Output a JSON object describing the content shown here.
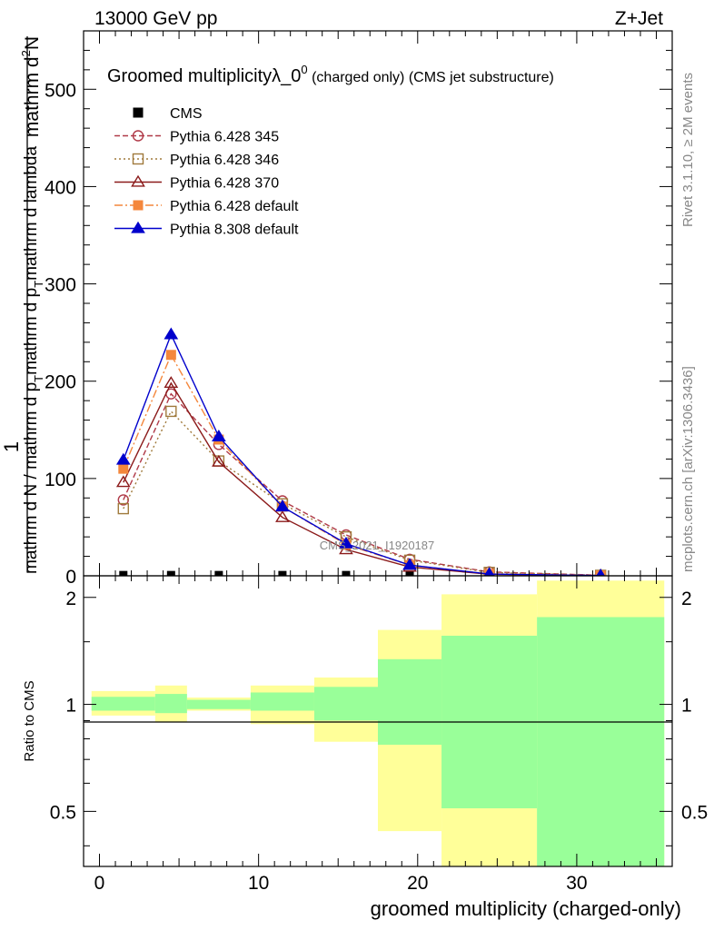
{
  "header": {
    "left_label": "13000 GeV pp",
    "right_label": "Z+Jet",
    "side_rivet": "Rivet 3.1.10, ≥ 2M events",
    "side_mcplots": "mcplots.cern.ch [arXiv:1306.3436]",
    "watermark": "CMS_2021_I1920187"
  },
  "chart_data": [
    {
      "type": "line",
      "title_main": "Groomed multiplicityλ_0",
      "title_sup": "0",
      "title_suffix": " (charged only) (CMS jet substructure)",
      "xlabel": "groomed multiplicity (charged-only)",
      "ylabel_top": "1",
      "ylabel_num": "mathrm d",
      "ylabel_num_sup": "2",
      "ylabel_num_tail": "N",
      "ylabel_den_a": "mathrm d N / mathrm d p",
      "ylabel_den_sub1": "T",
      "ylabel_den_b": "mathrm d p",
      "ylabel_den_sub2": "T",
      "ylabel_den_c": "mathrm d lambda",
      "xlim": [
        -1,
        36
      ],
      "ylim": [
        0,
        560
      ],
      "xticks": [
        0,
        10,
        20,
        30
      ],
      "yticks": [
        0,
        100,
        200,
        300,
        400,
        500
      ],
      "x": [
        1.5,
        4.5,
        7.5,
        11.5,
        15.5,
        19.5,
        24.5,
        31.5
      ],
      "series": [
        {
          "name": "CMS",
          "color": "#000000",
          "marker": "square-filled",
          "values": [
            0.8,
            0.8,
            0.8,
            0.8,
            0.8,
            0.8,
            0.4,
            0.1
          ]
        },
        {
          "name": "Pythia 6.428 345",
          "color": "#b03a48",
          "marker": "circle-open",
          "dash": "6,3",
          "values": [
            78,
            187,
            135,
            77,
            42,
            17,
            4,
            0.6
          ]
        },
        {
          "name": "Pythia 6.428 346",
          "color": "#a07a3c",
          "marker": "square-open",
          "dash": "2,3",
          "values": [
            69,
            169,
            118,
            74,
            40,
            16,
            3.5,
            0.5
          ]
        },
        {
          "name": "Pythia 6.428 370",
          "color": "#8b1a1a",
          "marker": "triangle-open",
          "dash": "",
          "values": [
            96,
            198,
            117,
            60,
            27,
            9,
            1.6,
            0.2
          ]
        },
        {
          "name": "Pythia 6.428 default",
          "color": "#f4873c",
          "marker": "square-filled",
          "dash": "9,3,2,3",
          "values": [
            110,
            227,
            140,
            71,
            32,
            11,
            2,
            0.3
          ]
        },
        {
          "name": "Pythia 8.308 default",
          "color": "#0000cc",
          "marker": "triangle-filled",
          "dash": "",
          "values": [
            119,
            248,
            143,
            71,
            33,
            11,
            1.8,
            0.25
          ]
        }
      ]
    },
    {
      "type": "area",
      "ylabel": "Ratio to CMS",
      "yscale": "log",
      "ylim": [
        0.35,
        2.3
      ],
      "yticks": [
        0.5,
        1,
        2
      ],
      "ytick_labels": [
        "0.5",
        "1",
        "2"
      ],
      "bins": [
        [
          -0.5,
          3.5
        ],
        [
          3.5,
          5.5
        ],
        [
          5.5,
          9.5
        ],
        [
          9.5,
          13.5
        ],
        [
          13.5,
          17.5
        ],
        [
          17.5,
          21.5
        ],
        [
          21.5,
          27.5
        ],
        [
          27.5,
          35.5
        ]
      ],
      "band_stat": {
        "color": "#99ff99",
        "low": [
          0.96,
          0.945,
          0.97,
          0.96,
          0.9,
          0.77,
          0.51,
          0.35
        ],
        "high": [
          1.05,
          1.07,
          1.03,
          1.08,
          1.12,
          1.34,
          1.56,
          1.76
        ]
      },
      "band_total": {
        "color": "#ffff99",
        "low": [
          0.93,
          0.89,
          0.96,
          0.88,
          0.785,
          0.44,
          0.35,
          0.35
        ],
        "high": [
          1.09,
          1.13,
          1.045,
          1.13,
          1.19,
          1.62,
          2.04,
          2.23
        ]
      }
    }
  ]
}
